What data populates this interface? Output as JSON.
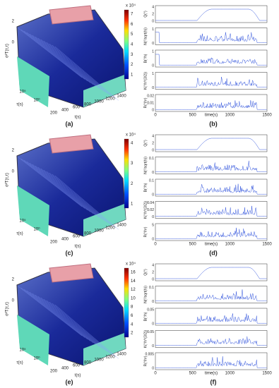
{
  "panels": [
    {
      "label": "(a)",
      "kind": "surface",
      "zlabel": "σ²T(τ,τ)",
      "ylabel": "τ(s)",
      "xlabel": "t(s)",
      "xticks": [
        "200",
        "400",
        "600",
        "800",
        "1000",
        "1200",
        "1400"
      ],
      "yticks": [
        "10⁵",
        "10⁰"
      ],
      "zticks": [
        "0",
        "2"
      ],
      "colorbar": {
        "exponent": "x 10⁴",
        "ticks": [
          "1",
          "2",
          "3",
          "4",
          "5",
          "6",
          "7"
        ]
      }
    },
    {
      "label": "(b)",
      "kind": "traces",
      "xlabel": "time(s)",
      "xticks": [
        "0",
        "500",
        "1000",
        "1500"
      ],
      "subplots": [
        {
          "ylabel": "Q(°)",
          "yticks": [
            "0",
            "2",
            "4"
          ]
        },
        {
          "ylabel": "N(°/sqrt(h))",
          "yticks": [
            "0",
            "1"
          ]
        },
        {
          "ylabel": "B(°/h)",
          "yticks": [
            "0",
            "1"
          ]
        },
        {
          "ylabel": "K(°/h^(3/2))",
          "yticks": [
            "0",
            "1"
          ]
        },
        {
          "ylabel": "R(°/h²)",
          "yticks": [
            "0",
            "0.01",
            "0.02"
          ]
        }
      ]
    },
    {
      "label": "(c)",
      "kind": "surface",
      "zlabel": "σ²T(τ,τ)",
      "ylabel": "τ(s)",
      "xlabel": "t(s)",
      "xticks": [
        "200",
        "400",
        "600",
        "800",
        "1000",
        "1200",
        "1400"
      ],
      "yticks": [
        "10⁵",
        "10⁰"
      ],
      "zticks": [
        "0",
        "2"
      ],
      "colorbar": {
        "exponent": "x 10⁴",
        "ticks": [
          "1",
          "2",
          "3",
          "4"
        ]
      }
    },
    {
      "label": "(d)",
      "kind": "traces",
      "xlabel": "time(s)",
      "xticks": [
        "0",
        "500",
        "1000",
        "1500"
      ],
      "subplots": [
        {
          "ylabel": "Q(°)",
          "yticks": [
            "0",
            "2",
            "4"
          ]
        },
        {
          "ylabel": "N(°/sqrt(h))",
          "yticks": [
            "0",
            "0.1"
          ]
        },
        {
          "ylabel": "B(°/h)",
          "yticks": [
            "0",
            "0.1"
          ]
        },
        {
          "ylabel": "K(°/h^(3/2))",
          "yticks": [
            "0",
            "0.02",
            "0.04"
          ]
        },
        {
          "ylabel": "R(°/h²)",
          "yticks": [
            "0",
            "5"
          ]
        }
      ]
    },
    {
      "label": "(e)",
      "kind": "surface",
      "zlabel": "σ²T(τ,τ)",
      "ylabel": "τ(s)",
      "xlabel": "t(s)",
      "xticks": [
        "200",
        "400",
        "600",
        "800",
        "1000",
        "1200",
        "1400"
      ],
      "yticks": [
        "10⁵",
        "10⁰"
      ],
      "zticks": [
        "0",
        "2"
      ],
      "colorbar": {
        "exponent": "x 10⁴",
        "ticks": [
          "2",
          "4",
          "6",
          "8",
          "10",
          "12",
          "14",
          "16"
        ]
      }
    },
    {
      "label": "(f)",
      "kind": "traces",
      "xlabel": "time(s)",
      "xticks": [
        "0",
        "500",
        "1000",
        "1500"
      ],
      "subplots": [
        {
          "ylabel": "Q(°)",
          "yticks": [
            "0",
            "2",
            "4"
          ]
        },
        {
          "ylabel": "N(°/sqrt(h))",
          "yticks": [
            "0",
            "0.1"
          ]
        },
        {
          "ylabel": "B(°/h)",
          "yticks": [
            "0",
            "0.05"
          ]
        },
        {
          "ylabel": "K(°/h^(3/2))",
          "yticks": [
            "0",
            "0.05"
          ]
        },
        {
          "ylabel": "R(°/h²)",
          "yticks": [
            "0",
            "0.005"
          ]
        }
      ]
    }
  ]
}
